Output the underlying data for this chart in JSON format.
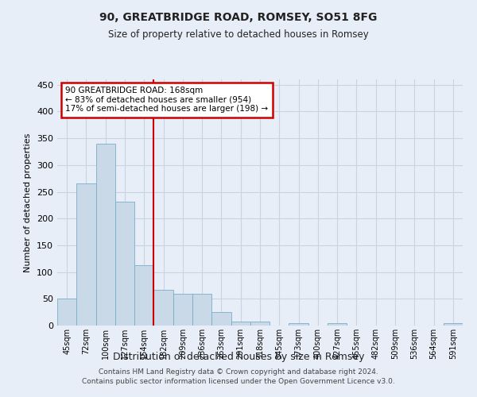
{
  "title": "90, GREATBRIDGE ROAD, ROMSEY, SO51 8FG",
  "subtitle": "Size of property relative to detached houses in Romsey",
  "xlabel": "Distribution of detached houses by size in Romsey",
  "ylabel": "Number of detached properties",
  "footer_line1": "Contains HM Land Registry data © Crown copyright and database right 2024.",
  "footer_line2": "Contains public sector information licensed under the Open Government Licence v3.0.",
  "bar_labels": [
    "45sqm",
    "72sqm",
    "100sqm",
    "127sqm",
    "154sqm",
    "182sqm",
    "209sqm",
    "236sqm",
    "263sqm",
    "291sqm",
    "318sqm",
    "345sqm",
    "373sqm",
    "400sqm",
    "427sqm",
    "455sqm",
    "482sqm",
    "509sqm",
    "536sqm",
    "564sqm",
    "591sqm"
  ],
  "bar_values": [
    50,
    265,
    340,
    232,
    113,
    67,
    60,
    60,
    25,
    8,
    8,
    0,
    5,
    0,
    4,
    0,
    0,
    0,
    0,
    0,
    4
  ],
  "bar_color": "#c9d9e8",
  "bar_edge_color": "#7aaec8",
  "grid_color": "#c8d4e4",
  "background_color": "#e8eef8",
  "annotation_text": "90 GREATBRIDGE ROAD: 168sqm\n← 83% of detached houses are smaller (954)\n17% of semi-detached houses are larger (198) →",
  "annotation_box_color": "#ffffff",
  "annotation_box_edge_color": "#cc0000",
  "vline_x": 4.5,
  "vline_color": "#cc0000",
  "ylim": [
    0,
    460
  ],
  "yticks": [
    0,
    50,
    100,
    150,
    200,
    250,
    300,
    350,
    400,
    450
  ]
}
